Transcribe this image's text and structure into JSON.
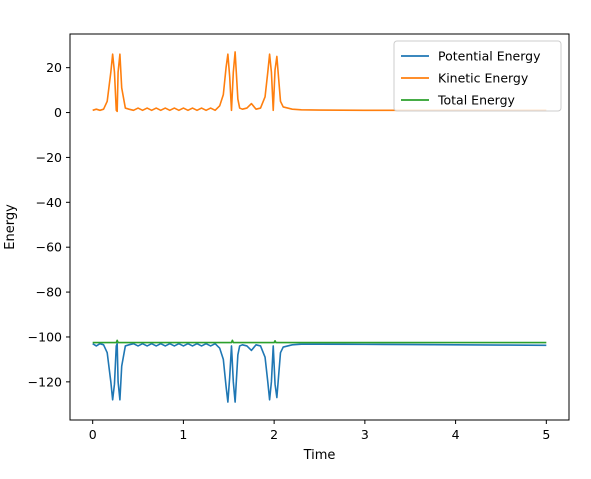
{
  "chart_data": {
    "type": "line",
    "title": "",
    "xlabel": "Time",
    "ylabel": "Energy",
    "xlim": [
      -0.25,
      5.25
    ],
    "ylim": [
      -137,
      35
    ],
    "xticks": [
      0,
      1,
      2,
      3,
      4,
      5
    ],
    "yticks": [
      20,
      0,
      -20,
      -40,
      -60,
      -80,
      -100,
      -120
    ],
    "ytick_labels": [
      "20",
      "0",
      "−20",
      "−40",
      "−60",
      "−80",
      "−100",
      "−120"
    ],
    "grid": false,
    "legend_position": "upper right",
    "series": [
      {
        "name": "Potential Energy",
        "color": "#1f77b4",
        "x": [
          0.0,
          0.04,
          0.08,
          0.12,
          0.16,
          0.2,
          0.22,
          0.24,
          0.26,
          0.27,
          0.28,
          0.3,
          0.32,
          0.36,
          0.4,
          0.45,
          0.5,
          0.55,
          0.6,
          0.65,
          0.7,
          0.75,
          0.8,
          0.85,
          0.9,
          0.95,
          1.0,
          1.05,
          1.1,
          1.15,
          1.2,
          1.25,
          1.3,
          1.35,
          1.4,
          1.44,
          1.47,
          1.49,
          1.51,
          1.53,
          1.55,
          1.57,
          1.58,
          1.6,
          1.62,
          1.65,
          1.7,
          1.75,
          1.8,
          1.85,
          1.9,
          1.93,
          1.95,
          1.97,
          1.99,
          2.01,
          2.03,
          2.05,
          2.07,
          2.1,
          2.15,
          2.2,
          2.3,
          2.5,
          3.0,
          3.5,
          4.0,
          4.5,
          5.0
        ],
        "values": [
          -103,
          -104,
          -103,
          -103.5,
          -107,
          -120,
          -128,
          -121,
          -104,
          -103,
          -120,
          -128,
          -113,
          -104,
          -103.5,
          -103,
          -104,
          -103,
          -104,
          -103,
          -104,
          -103,
          -104,
          -103,
          -104,
          -103,
          -104,
          -103,
          -104,
          -103,
          -104,
          -103,
          -104,
          -103,
          -105,
          -110,
          -122,
          -129,
          -118,
          -104,
          -120,
          -129,
          -122,
          -108,
          -104,
          -103.5,
          -104,
          -106,
          -103.5,
          -104,
          -109,
          -120,
          -128,
          -120,
          -104,
          -121,
          -127,
          -117,
          -107,
          -104.5,
          -104,
          -103.5,
          -103.2,
          -103.2,
          -103.3,
          -103.4,
          -103.5,
          -103.6,
          -103.7
        ]
      },
      {
        "name": "Kinetic Energy",
        "color": "#ff7f0e",
        "x": [
          0.0,
          0.04,
          0.08,
          0.12,
          0.16,
          0.2,
          0.22,
          0.24,
          0.26,
          0.27,
          0.28,
          0.3,
          0.32,
          0.36,
          0.4,
          0.45,
          0.5,
          0.55,
          0.6,
          0.65,
          0.7,
          0.75,
          0.8,
          0.85,
          0.9,
          0.95,
          1.0,
          1.05,
          1.1,
          1.15,
          1.2,
          1.25,
          1.3,
          1.35,
          1.4,
          1.44,
          1.47,
          1.49,
          1.51,
          1.53,
          1.55,
          1.57,
          1.58,
          1.6,
          1.62,
          1.65,
          1.7,
          1.75,
          1.8,
          1.85,
          1.9,
          1.93,
          1.95,
          1.97,
          1.99,
          2.01,
          2.03,
          2.05,
          2.07,
          2.1,
          2.15,
          2.2,
          2.3,
          2.5,
          3.0,
          3.5,
          4.0,
          4.5,
          5.0
        ],
        "values": [
          1,
          1.5,
          1,
          1.5,
          5,
          18,
          26,
          18,
          1,
          0.5,
          18,
          26,
          11,
          2,
          1.5,
          1,
          2,
          1,
          2,
          1,
          2,
          1,
          2,
          1,
          2,
          1,
          2,
          1,
          2,
          1,
          2,
          1,
          2,
          1,
          3,
          8,
          20,
          26,
          16,
          1,
          18,
          27,
          20,
          6,
          2,
          1.5,
          2,
          4,
          1.5,
          2,
          7,
          18,
          26,
          18,
          1,
          19,
          25,
          15,
          5,
          2.5,
          2,
          1.5,
          1.2,
          1.1,
          1,
          1,
          1,
          1,
          1
        ]
      },
      {
        "name": "Total Energy",
        "color": "#2ca02c",
        "x": [
          0.0,
          0.26,
          0.27,
          0.28,
          0.5,
          1.0,
          1.53,
          1.54,
          1.55,
          2.0,
          2.01,
          2.02,
          2.5,
          3.0,
          4.0,
          5.0
        ],
        "values": [
          -102.5,
          -102.5,
          -101.5,
          -102.5,
          -102.5,
          -102.5,
          -102.5,
          -101.5,
          -102.5,
          -102.5,
          -101.7,
          -102.5,
          -102.5,
          -102.5,
          -102.5,
          -102.5
        ]
      }
    ]
  }
}
